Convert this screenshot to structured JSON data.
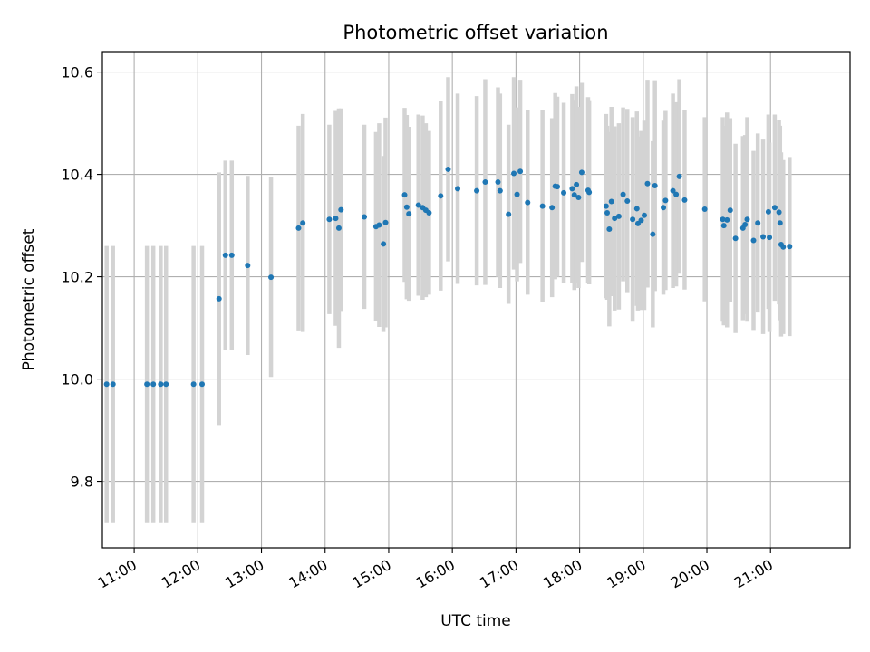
{
  "chart_data": {
    "type": "scatter",
    "title": "Photometric offset variation",
    "xlabel": "UTC time",
    "ylabel": "Photometric offset",
    "xlim": [
      "10:30",
      "22:15"
    ],
    "ylim": [
      9.67,
      10.64
    ],
    "xticks": [
      "11:00",
      "12:00",
      "13:00",
      "14:00",
      "15:00",
      "16:00",
      "17:00",
      "18:00",
      "19:00",
      "20:00",
      "21:00"
    ],
    "yticks": [
      9.8,
      10.0,
      10.2,
      10.4,
      10.6
    ],
    "ytick_labels": [
      "9.8",
      "10.0",
      "10.2",
      "10.4",
      "10.6"
    ],
    "grid": true,
    "colors": {
      "points": "#1f77b4",
      "errorbars": "#d3d3d3",
      "grid": "#b0b0b0"
    },
    "points": [
      {
        "x": "10:34",
        "y": 9.99,
        "err": 0.27
      },
      {
        "x": "10:40",
        "y": 9.99,
        "err": 0.27
      },
      {
        "x": "11:12",
        "y": 9.99,
        "err": 0.27
      },
      {
        "x": "11:18",
        "y": 9.99,
        "err": 0.27
      },
      {
        "x": "11:25",
        "y": 9.99,
        "err": 0.27
      },
      {
        "x": "11:30",
        "y": 9.99,
        "err": 0.27
      },
      {
        "x": "11:56",
        "y": 9.99,
        "err": 0.27
      },
      {
        "x": "12:04",
        "y": 9.99,
        "err": 0.27
      },
      {
        "x": "12:20",
        "y": 10.157,
        "err": 0.247
      },
      {
        "x": "12:26",
        "y": 10.242,
        "err": 0.185
      },
      {
        "x": "12:32",
        "y": 10.242,
        "err": 0.185
      },
      {
        "x": "12:47",
        "y": 10.222,
        "err": 0.175
      },
      {
        "x": "13:09",
        "y": 10.199,
        "err": 0.195
      },
      {
        "x": "13:35",
        "y": 10.295,
        "err": 0.2
      },
      {
        "x": "13:39",
        "y": 10.305,
        "err": 0.213
      },
      {
        "x": "14:04",
        "y": 10.312,
        "err": 0.185
      },
      {
        "x": "14:10",
        "y": 10.314,
        "err": 0.21
      },
      {
        "x": "14:13",
        "y": 10.295,
        "err": 0.234
      },
      {
        "x": "14:15",
        "y": 10.331,
        "err": 0.198
      },
      {
        "x": "14:37",
        "y": 10.317,
        "err": 0.18
      },
      {
        "x": "14:48",
        "y": 10.298,
        "err": 0.185
      },
      {
        "x": "14:51",
        "y": 10.301,
        "err": 0.199
      },
      {
        "x": "14:55",
        "y": 10.264,
        "err": 0.172
      },
      {
        "x": "14:57",
        "y": 10.306,
        "err": 0.205
      },
      {
        "x": "15:15",
        "y": 10.36,
        "err": 0.17
      },
      {
        "x": "15:17",
        "y": 10.336,
        "err": 0.18
      },
      {
        "x": "15:19",
        "y": 10.323,
        "err": 0.17
      },
      {
        "x": "15:28",
        "y": 10.34,
        "err": 0.177
      },
      {
        "x": "15:32",
        "y": 10.335,
        "err": 0.18
      },
      {
        "x": "15:35",
        "y": 10.33,
        "err": 0.17
      },
      {
        "x": "15:38",
        "y": 10.325,
        "err": 0.16
      },
      {
        "x": "15:49",
        "y": 10.358,
        "err": 0.185
      },
      {
        "x": "15:56",
        "y": 10.41,
        "err": 0.18
      },
      {
        "x": "16:05",
        "y": 10.372,
        "err": 0.186
      },
      {
        "x": "16:23",
        "y": 10.368,
        "err": 0.185
      },
      {
        "x": "16:31",
        "y": 10.385,
        "err": 0.201
      },
      {
        "x": "16:43",
        "y": 10.385,
        "err": 0.185
      },
      {
        "x": "16:45",
        "y": 10.368,
        "err": 0.19
      },
      {
        "x": "16:53",
        "y": 10.322,
        "err": 0.175
      },
      {
        "x": "16:58",
        "y": 10.402,
        "err": 0.188
      },
      {
        "x": "17:01",
        "y": 10.361,
        "err": 0.17
      },
      {
        "x": "17:04",
        "y": 10.406,
        "err": 0.179
      },
      {
        "x": "17:11",
        "y": 10.345,
        "err": 0.18
      },
      {
        "x": "17:25",
        "y": 10.338,
        "err": 0.187
      },
      {
        "x": "17:34",
        "y": 10.335,
        "err": 0.175
      },
      {
        "x": "17:37",
        "y": 10.377,
        "err": 0.182
      },
      {
        "x": "17:39",
        "y": 10.376,
        "err": 0.176
      },
      {
        "x": "17:45",
        "y": 10.364,
        "err": 0.176
      },
      {
        "x": "17:53",
        "y": 10.372,
        "err": 0.185
      },
      {
        "x": "17:55",
        "y": 10.36,
        "err": 0.186
      },
      {
        "x": "17:57",
        "y": 10.38,
        "err": 0.192
      },
      {
        "x": "17:59",
        "y": 10.355,
        "err": 0.177
      },
      {
        "x": "18:02",
        "y": 10.404,
        "err": 0.175
      },
      {
        "x": "18:08",
        "y": 10.369,
        "err": 0.182
      },
      {
        "x": "18:09",
        "y": 10.365,
        "err": 0.18
      },
      {
        "x": "18:25",
        "y": 10.338,
        "err": 0.18
      },
      {
        "x": "18:26",
        "y": 10.325,
        "err": 0.17
      },
      {
        "x": "18:28",
        "y": 10.293,
        "err": 0.19
      },
      {
        "x": "18:30",
        "y": 10.347,
        "err": 0.185
      },
      {
        "x": "18:33",
        "y": 10.314,
        "err": 0.18
      },
      {
        "x": "18:37",
        "y": 10.318,
        "err": 0.182
      },
      {
        "x": "18:41",
        "y": 10.361,
        "err": 0.17
      },
      {
        "x": "18:45",
        "y": 10.348,
        "err": 0.18
      },
      {
        "x": "18:50",
        "y": 10.312,
        "err": 0.2
      },
      {
        "x": "18:54",
        "y": 10.333,
        "err": 0.19
      },
      {
        "x": "18:55",
        "y": 10.304,
        "err": 0.17
      },
      {
        "x": "18:58",
        "y": 10.31,
        "err": 0.175
      },
      {
        "x": "19:01",
        "y": 10.32,
        "err": 0.185
      },
      {
        "x": "19:04",
        "y": 10.382,
        "err": 0.203
      },
      {
        "x": "19:09",
        "y": 10.283,
        "err": 0.182
      },
      {
        "x": "19:11",
        "y": 10.378,
        "err": 0.206
      },
      {
        "x": "19:19",
        "y": 10.335,
        "err": 0.17
      },
      {
        "x": "19:21",
        "y": 10.349,
        "err": 0.175
      },
      {
        "x": "19:28",
        "y": 10.368,
        "err": 0.19
      },
      {
        "x": "19:31",
        "y": 10.361,
        "err": 0.18
      },
      {
        "x": "19:34",
        "y": 10.396,
        "err": 0.19
      },
      {
        "x": "19:39",
        "y": 10.35,
        "err": 0.175
      },
      {
        "x": "19:58",
        "y": 10.332,
        "err": 0.18
      },
      {
        "x": "20:15",
        "y": 10.312,
        "err": 0.2
      },
      {
        "x": "20:16",
        "y": 10.3,
        "err": 0.195
      },
      {
        "x": "20:19",
        "y": 10.311,
        "err": 0.21
      },
      {
        "x": "20:22",
        "y": 10.33,
        "err": 0.18
      },
      {
        "x": "20:27",
        "y": 10.275,
        "err": 0.185
      },
      {
        "x": "20:34",
        "y": 10.295,
        "err": 0.18
      },
      {
        "x": "20:36",
        "y": 10.302,
        "err": 0.175
      },
      {
        "x": "20:38",
        "y": 10.312,
        "err": 0.2
      },
      {
        "x": "20:44",
        "y": 10.271,
        "err": 0.175
      },
      {
        "x": "20:48",
        "y": 10.305,
        "err": 0.175
      },
      {
        "x": "20:53",
        "y": 10.278,
        "err": 0.19
      },
      {
        "x": "20:58",
        "y": 10.327,
        "err": 0.19
      },
      {
        "x": "20:59",
        "y": 10.277,
        "err": 0.185
      },
      {
        "x": "21:04",
        "y": 10.335,
        "err": 0.182
      },
      {
        "x": "21:08",
        "y": 10.326,
        "err": 0.18
      },
      {
        "x": "21:09",
        "y": 10.305,
        "err": 0.19
      },
      {
        "x": "21:10",
        "y": 10.263,
        "err": 0.18
      },
      {
        "x": "21:12",
        "y": 10.258,
        "err": 0.17
      },
      {
        "x": "21:18",
        "y": 10.259,
        "err": 0.175
      }
    ]
  }
}
